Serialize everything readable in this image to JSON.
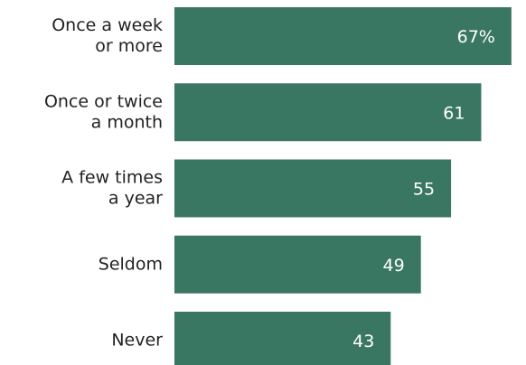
{
  "chart_data": {
    "type": "bar",
    "orientation": "horizontal",
    "categories": [
      [
        "Once a week",
        "or more"
      ],
      [
        "Once or twice",
        "a month"
      ],
      [
        "A few times",
        "a year"
      ],
      [
        "Seldom"
      ],
      [
        "Never"
      ]
    ],
    "values": [
      67,
      61,
      55,
      49,
      43
    ],
    "value_labels": [
      "67%",
      "61",
      "55",
      "49",
      "43"
    ],
    "title": "",
    "xlabel": "",
    "ylabel": "",
    "xlim": [
      0,
      69
    ],
    "grid": false,
    "legend": "none",
    "colors": {
      "bar": "#3a7763",
      "value_text": "#ffffff",
      "category_text": "#222222"
    }
  }
}
